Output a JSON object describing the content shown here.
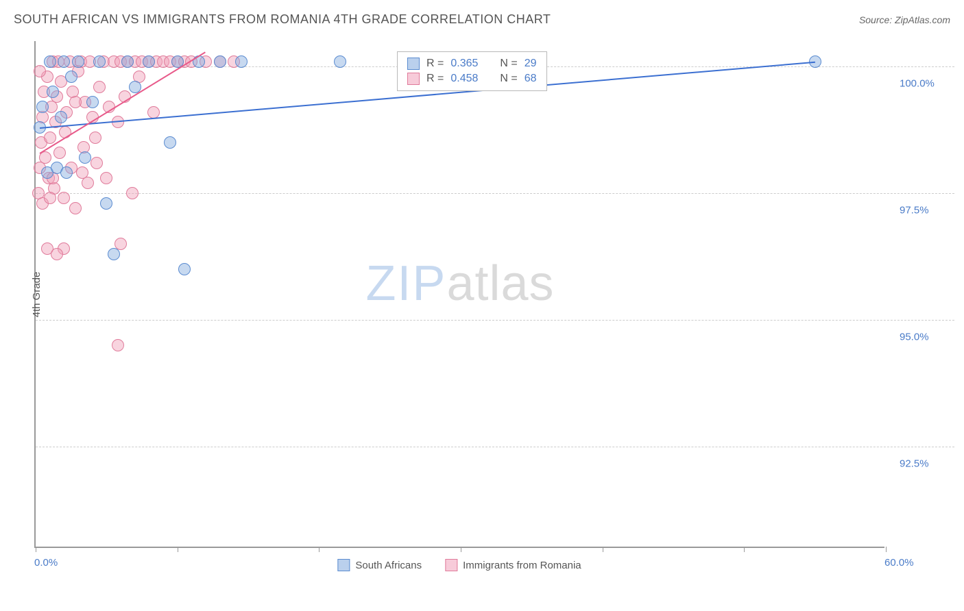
{
  "title": "SOUTH AFRICAN VS IMMIGRANTS FROM ROMANIA 4TH GRADE CORRELATION CHART",
  "source": "Source: ZipAtlas.com",
  "y_axis_title": "4th Grade",
  "watermark": {
    "zip": "ZIP",
    "atlas": "atlas"
  },
  "chart": {
    "type": "scatter",
    "xlim": [
      0,
      60
    ],
    "ylim": [
      90.5,
      100.5
    ],
    "x_tick_labels": {
      "left": "0.0%",
      "right": "60.0%",
      "right_x": 60
    },
    "x_ticks": [
      0,
      10,
      20,
      30,
      40,
      50,
      60
    ],
    "y_ticks": [
      92.5,
      95.0,
      97.5,
      100.0
    ],
    "y_tick_labels": [
      "92.5%",
      "95.0%",
      "97.5%",
      "100.0%"
    ],
    "grid_color": "#cccccc",
    "axis_color": "#999999",
    "label_color": "#4a7bc8",
    "marker_radius": 9,
    "series": [
      {
        "name": "South Africans",
        "color_fill": "rgba(130,170,222,0.45)",
        "color_stroke": "#5a8bd0",
        "class": "blue",
        "trend_color": "#3b6fd1",
        "trend": {
          "x1": 0.3,
          "y1": 98.8,
          "x2": 55,
          "y2": 100.1
        },
        "points": [
          [
            0.3,
            98.8
          ],
          [
            0.5,
            99.2
          ],
          [
            0.8,
            97.9
          ],
          [
            1.0,
            100.1
          ],
          [
            1.2,
            99.5
          ],
          [
            1.5,
            98.0
          ],
          [
            1.8,
            99.0
          ],
          [
            2.0,
            100.1
          ],
          [
            2.2,
            97.9
          ],
          [
            2.5,
            99.8
          ],
          [
            3.0,
            100.1
          ],
          [
            3.5,
            98.2
          ],
          [
            4.0,
            99.3
          ],
          [
            4.5,
            100.1
          ],
          [
            5.0,
            97.3
          ],
          [
            5.5,
            96.3
          ],
          [
            6.5,
            100.1
          ],
          [
            7.0,
            99.6
          ],
          [
            8.0,
            100.1
          ],
          [
            9.5,
            98.5
          ],
          [
            10.0,
            100.1
          ],
          [
            10.5,
            96.0
          ],
          [
            11.5,
            100.1
          ],
          [
            13.0,
            100.1
          ],
          [
            14.5,
            100.1
          ],
          [
            21.5,
            100.1
          ],
          [
            31.5,
            100.1
          ],
          [
            34.8,
            100.1
          ],
          [
            55.0,
            100.1
          ]
        ]
      },
      {
        "name": "Immigrants from Romania",
        "color_fill": "rgba(240,160,185,0.45)",
        "color_stroke": "#e07a9a",
        "class": "pink",
        "trend_color": "#e85a8a",
        "trend": {
          "x1": 0.3,
          "y1": 98.3,
          "x2": 12.0,
          "y2": 100.3
        },
        "points": [
          [
            0.2,
            97.5
          ],
          [
            0.3,
            98.0
          ],
          [
            0.4,
            98.5
          ],
          [
            0.5,
            99.0
          ],
          [
            0.5,
            97.3
          ],
          [
            0.6,
            99.5
          ],
          [
            0.7,
            98.2
          ],
          [
            0.8,
            99.8
          ],
          [
            0.9,
            97.8
          ],
          [
            1.0,
            98.6
          ],
          [
            1.1,
            99.2
          ],
          [
            1.2,
            100.1
          ],
          [
            1.3,
            97.6
          ],
          [
            1.4,
            98.9
          ],
          [
            1.5,
            99.4
          ],
          [
            1.6,
            100.1
          ],
          [
            1.7,
            98.3
          ],
          [
            1.8,
            99.7
          ],
          [
            2.0,
            97.4
          ],
          [
            2.1,
            98.7
          ],
          [
            2.2,
            99.1
          ],
          [
            2.4,
            100.1
          ],
          [
            2.5,
            98.0
          ],
          [
            2.6,
            99.5
          ],
          [
            2.8,
            97.2
          ],
          [
            3.0,
            99.9
          ],
          [
            3.2,
            100.1
          ],
          [
            3.4,
            98.4
          ],
          [
            3.5,
            99.3
          ],
          [
            3.7,
            97.7
          ],
          [
            3.8,
            100.1
          ],
          [
            4.0,
            99.0
          ],
          [
            4.2,
            98.6
          ],
          [
            4.5,
            99.6
          ],
          [
            4.8,
            100.1
          ],
          [
            5.0,
            97.8
          ],
          [
            5.2,
            99.2
          ],
          [
            5.5,
            100.1
          ],
          [
            5.8,
            98.9
          ],
          [
            6.0,
            100.1
          ],
          [
            6.3,
            99.4
          ],
          [
            6.5,
            100.1
          ],
          [
            6.8,
            97.5
          ],
          [
            7.0,
            100.1
          ],
          [
            7.3,
            99.8
          ],
          [
            7.5,
            100.1
          ],
          [
            8.0,
            100.1
          ],
          [
            8.3,
            99.1
          ],
          [
            8.5,
            100.1
          ],
          [
            9.0,
            100.1
          ],
          [
            9.5,
            100.1
          ],
          [
            10.0,
            100.1
          ],
          [
            10.5,
            100.1
          ],
          [
            11.0,
            100.1
          ],
          [
            12.0,
            100.1
          ],
          [
            13.0,
            100.1
          ],
          [
            14.0,
            100.1
          ],
          [
            0.8,
            96.4
          ],
          [
            2.0,
            96.4
          ],
          [
            1.5,
            96.3
          ],
          [
            6.0,
            96.5
          ],
          [
            5.8,
            94.5
          ],
          [
            1.2,
            97.8
          ],
          [
            2.8,
            99.3
          ],
          [
            3.3,
            97.9
          ],
          [
            4.3,
            98.1
          ],
          [
            0.3,
            99.9
          ],
          [
            1.0,
            97.4
          ]
        ]
      }
    ],
    "stats_box": {
      "x": 25.5,
      "y_top": 100.3,
      "rows": [
        {
          "swatch": "blue",
          "r_label": "R =",
          "r": "0.365",
          "n_label": "N =",
          "n": "29"
        },
        {
          "swatch": "pink",
          "r_label": "R =",
          "r": "0.458",
          "n_label": "N =",
          "n": "68"
        }
      ]
    },
    "bottom_legend": [
      {
        "swatch": "blue",
        "label": "South Africans"
      },
      {
        "swatch": "pink",
        "label": "Immigrants from Romania"
      }
    ]
  }
}
